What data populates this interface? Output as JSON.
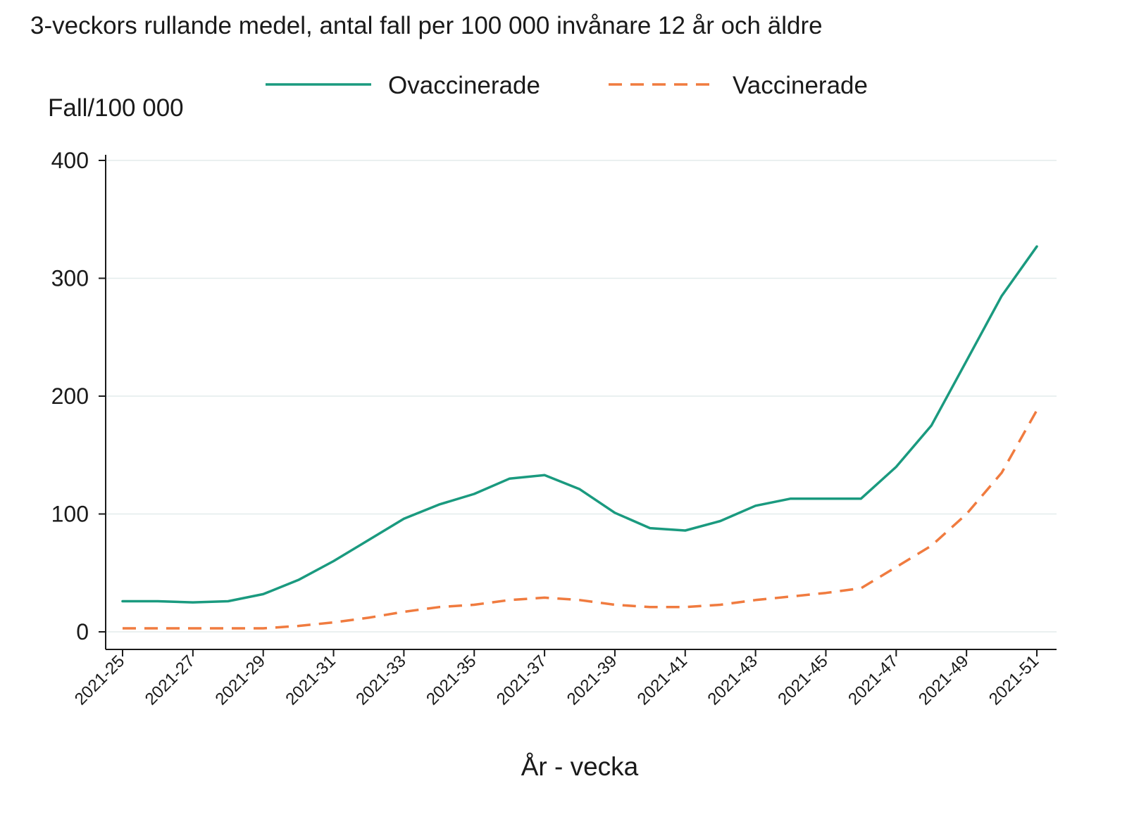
{
  "chart_data": {
    "type": "line",
    "title": "3-veckors rullande medel, antal fall per 100 000 invånare 12 år och äldre",
    "ylabel": "Fall/100 000",
    "xlabel": "År - vecka",
    "ylim": [
      0,
      400
    ],
    "yticks": [
      "0",
      "100",
      "200",
      "300",
      "400"
    ],
    "grid": "horizontal",
    "legend_position": "top",
    "x": [
      "2021-25",
      "2021-26",
      "2021-27",
      "2021-28",
      "2021-29",
      "2021-30",
      "2021-31",
      "2021-32",
      "2021-33",
      "2021-34",
      "2021-35",
      "2021-36",
      "2021-37",
      "2021-38",
      "2021-39",
      "2021-40",
      "2021-41",
      "2021-42",
      "2021-43",
      "2021-44",
      "2021-45",
      "2021-46",
      "2021-47",
      "2021-48",
      "2021-49",
      "2021-50",
      "2021-51"
    ],
    "xtick_labels": [
      "2021-25",
      "2021-27",
      "2021-29",
      "2021-31",
      "2021-33",
      "2021-35",
      "2021-37",
      "2021-39",
      "2021-41",
      "2021-43",
      "2021-45",
      "2021-47",
      "2021-49",
      "2021-51"
    ],
    "series": [
      {
        "name": "Ovaccinerade",
        "color": "#1a9a7f",
        "style": "solid",
        "values": [
          26,
          26,
          25,
          26,
          32,
          44,
          60,
          78,
          96,
          108,
          117,
          130,
          133,
          121,
          101,
          88,
          86,
          94,
          107,
          113,
          113,
          113,
          140,
          175,
          230,
          285,
          327
        ]
      },
      {
        "name": "Vaccinerade",
        "color": "#f07b3f",
        "style": "dashed",
        "values": [
          3,
          3,
          3,
          3,
          3,
          5,
          8,
          12,
          17,
          21,
          23,
          27,
          29,
          27,
          23,
          21,
          21,
          23,
          27,
          30,
          33,
          37,
          55,
          73,
          100,
          135,
          188
        ]
      }
    ]
  }
}
